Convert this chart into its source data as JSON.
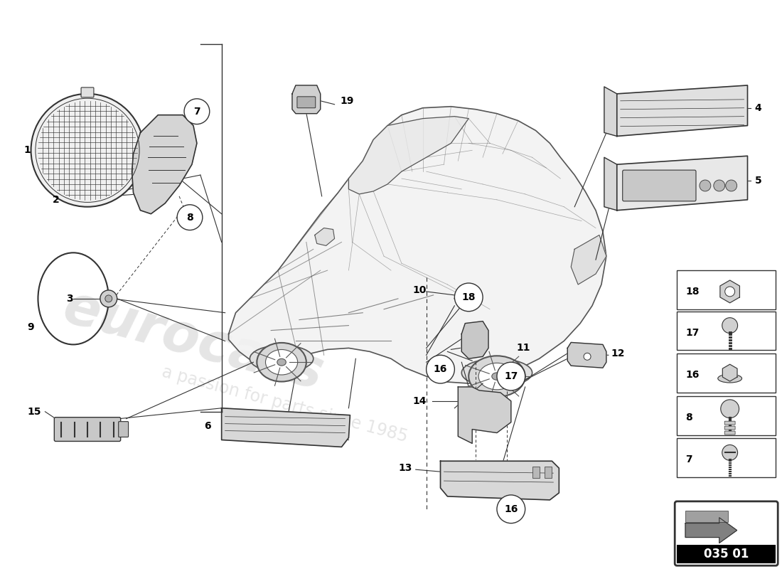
{
  "background_color": "#ffffff",
  "line_color": "#333333",
  "part_number_text": "035 01",
  "watermark1": "eurocars",
  "watermark2": "a passion for parts since 1985",
  "car_body_color": "#f5f5f5",
  "car_line_color": "#555555",
  "part_fill": "#e0e0e0",
  "part_line": "#333333"
}
